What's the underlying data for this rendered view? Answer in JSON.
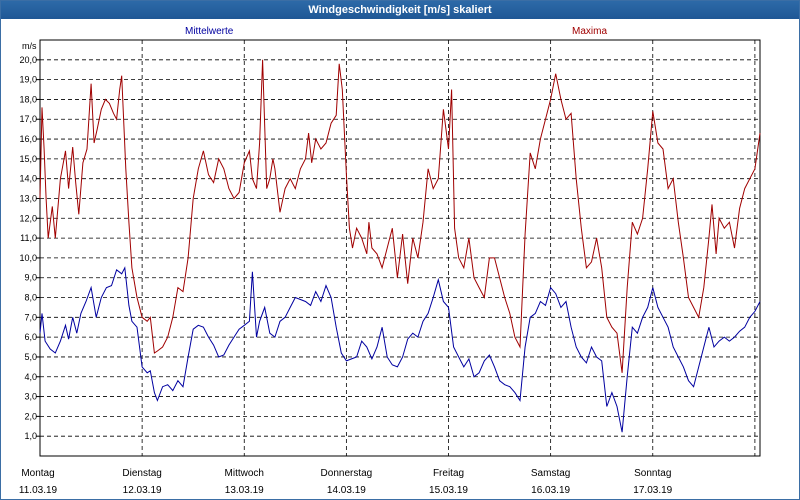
{
  "window": {
    "title": "Windgeschwindigkeit [m/s] skaliert"
  },
  "colors": {
    "mean": "#0000a0",
    "max": "#a00000",
    "grid": "#000000"
  },
  "chart_data": {
    "type": "line",
    "title": "Windgeschwindigkeit [m/s] skaliert",
    "ylabel": "m/s",
    "ylim": [
      0,
      21
    ],
    "yticks": [
      "1,0",
      "2,0",
      "3,0",
      "4,0",
      "5,0",
      "6,0",
      "7,0",
      "8,0",
      "9,0",
      "10,0",
      "11,0",
      "12,0",
      "13,0",
      "14,0",
      "15,0",
      "16,0",
      "17,0",
      "18,0",
      "19,0",
      "20,0"
    ],
    "grid": true,
    "legend": [
      "Mittelwerte",
      "Maxima"
    ],
    "xlim": [
      0,
      7.05
    ],
    "x_ticks": [
      {
        "day": "Montag",
        "date": "11.03.19"
      },
      {
        "day": "Dienstag",
        "date": "12.03.19"
      },
      {
        "day": "Mittwoch",
        "date": "13.03.19"
      },
      {
        "day": "Donnerstag",
        "date": "14.03.19"
      },
      {
        "day": "Freitag",
        "date": "15.03.19"
      },
      {
        "day": "Samstag",
        "date": "16.03.19"
      },
      {
        "day": "Sonntag",
        "date": "17.03.19"
      }
    ],
    "series": [
      {
        "name": "Mittelwerte",
        "points": [
          [
            0,
            6.2
          ],
          [
            0.02,
            7.2
          ],
          [
            0.05,
            5.8
          ],
          [
            0.1,
            5.4
          ],
          [
            0.15,
            5.2
          ],
          [
            0.2,
            5.8
          ],
          [
            0.25,
            6.6
          ],
          [
            0.28,
            5.9
          ],
          [
            0.32,
            7.0
          ],
          [
            0.36,
            6.2
          ],
          [
            0.4,
            7.2
          ],
          [
            0.45,
            7.8
          ],
          [
            0.5,
            8.5
          ],
          [
            0.55,
            7.0
          ],
          [
            0.6,
            8.0
          ],
          [
            0.65,
            8.5
          ],
          [
            0.7,
            8.6
          ],
          [
            0.75,
            9.4
          ],
          [
            0.8,
            9.2
          ],
          [
            0.83,
            9.5
          ],
          [
            0.87,
            7.6
          ],
          [
            0.9,
            6.8
          ],
          [
            0.95,
            6.5
          ],
          [
            1.0,
            4.5
          ],
          [
            1.05,
            4.2
          ],
          [
            1.08,
            4.3
          ],
          [
            1.12,
            3.2
          ],
          [
            1.15,
            2.8
          ],
          [
            1.2,
            3.5
          ],
          [
            1.25,
            3.6
          ],
          [
            1.3,
            3.3
          ],
          [
            1.35,
            3.8
          ],
          [
            1.4,
            3.5
          ],
          [
            1.45,
            5.0
          ],
          [
            1.5,
            6.4
          ],
          [
            1.55,
            6.6
          ],
          [
            1.6,
            6.5
          ],
          [
            1.65,
            6.0
          ],
          [
            1.7,
            5.6
          ],
          [
            1.75,
            5.0
          ],
          [
            1.8,
            5.1
          ],
          [
            1.85,
            5.6
          ],
          [
            1.9,
            6.0
          ],
          [
            1.95,
            6.4
          ],
          [
            2.0,
            6.6
          ],
          [
            2.05,
            6.8
          ],
          [
            2.08,
            9.3
          ],
          [
            2.12,
            6.0
          ],
          [
            2.15,
            6.8
          ],
          [
            2.2,
            7.5
          ],
          [
            2.25,
            6.2
          ],
          [
            2.3,
            6.0
          ],
          [
            2.35,
            6.8
          ],
          [
            2.4,
            7.0
          ],
          [
            2.45,
            7.5
          ],
          [
            2.5,
            8.0
          ],
          [
            2.55,
            7.9
          ],
          [
            2.6,
            7.8
          ],
          [
            2.65,
            7.6
          ],
          [
            2.7,
            8.3
          ],
          [
            2.75,
            7.8
          ],
          [
            2.8,
            8.6
          ],
          [
            2.85,
            8.0
          ],
          [
            2.9,
            6.5
          ],
          [
            2.95,
            5.2
          ],
          [
            3.0,
            4.8
          ],
          [
            3.05,
            4.9
          ],
          [
            3.1,
            5.0
          ],
          [
            3.15,
            5.8
          ],
          [
            3.2,
            5.5
          ],
          [
            3.25,
            4.9
          ],
          [
            3.3,
            5.5
          ],
          [
            3.35,
            6.5
          ],
          [
            3.4,
            5.0
          ],
          [
            3.45,
            4.6
          ],
          [
            3.5,
            4.5
          ],
          [
            3.55,
            5.0
          ],
          [
            3.6,
            5.9
          ],
          [
            3.65,
            6.2
          ],
          [
            3.7,
            6.0
          ],
          [
            3.75,
            6.8
          ],
          [
            3.8,
            7.2
          ],
          [
            3.85,
            8.0
          ],
          [
            3.9,
            8.9
          ],
          [
            3.95,
            7.8
          ],
          [
            4.0,
            7.5
          ],
          [
            4.05,
            5.5
          ],
          [
            4.1,
            5.0
          ],
          [
            4.15,
            4.5
          ],
          [
            4.2,
            4.9
          ],
          [
            4.25,
            4.0
          ],
          [
            4.3,
            4.2
          ],
          [
            4.35,
            4.8
          ],
          [
            4.4,
            5.1
          ],
          [
            4.45,
            4.5
          ],
          [
            4.5,
            3.8
          ],
          [
            4.55,
            3.6
          ],
          [
            4.6,
            3.5
          ],
          [
            4.65,
            3.2
          ],
          [
            4.7,
            2.8
          ],
          [
            4.75,
            5.5
          ],
          [
            4.8,
            7.0
          ],
          [
            4.85,
            7.2
          ],
          [
            4.9,
            7.8
          ],
          [
            4.95,
            7.6
          ],
          [
            5.0,
            8.5
          ],
          [
            5.05,
            8.2
          ],
          [
            5.1,
            7.5
          ],
          [
            5.15,
            7.8
          ],
          [
            5.2,
            6.5
          ],
          [
            5.25,
            5.5
          ],
          [
            5.3,
            5.0
          ],
          [
            5.35,
            4.7
          ],
          [
            5.4,
            5.5
          ],
          [
            5.45,
            5.0
          ],
          [
            5.5,
            4.8
          ],
          [
            5.55,
            2.5
          ],
          [
            5.6,
            3.2
          ],
          [
            5.65,
            2.5
          ],
          [
            5.7,
            1.2
          ],
          [
            5.75,
            4.0
          ],
          [
            5.8,
            6.5
          ],
          [
            5.85,
            6.2
          ],
          [
            5.9,
            7.0
          ],
          [
            5.95,
            7.5
          ],
          [
            6.0,
            8.5
          ],
          [
            6.05,
            7.5
          ],
          [
            6.1,
            7.0
          ],
          [
            6.15,
            6.5
          ],
          [
            6.2,
            5.5
          ],
          [
            6.25,
            5.0
          ],
          [
            6.3,
            4.5
          ],
          [
            6.35,
            3.8
          ],
          [
            6.4,
            3.5
          ],
          [
            6.45,
            4.5
          ],
          [
            6.5,
            5.5
          ],
          [
            6.55,
            6.5
          ],
          [
            6.6,
            5.5
          ],
          [
            6.65,
            5.8
          ],
          [
            6.7,
            6.0
          ],
          [
            6.75,
            5.8
          ],
          [
            6.8,
            6.0
          ],
          [
            6.85,
            6.3
          ],
          [
            6.9,
            6.5
          ],
          [
            6.95,
            7.0
          ],
          [
            7.0,
            7.3
          ],
          [
            7.05,
            7.8
          ]
        ]
      },
      {
        "name": "Maxima",
        "points": [
          [
            0,
            13.0
          ],
          [
            0.02,
            17.6
          ],
          [
            0.04,
            15.5
          ],
          [
            0.06,
            13.0
          ],
          [
            0.08,
            11.0
          ],
          [
            0.12,
            12.6
          ],
          [
            0.15,
            11.0
          ],
          [
            0.2,
            14.0
          ],
          [
            0.25,
            15.4
          ],
          [
            0.28,
            13.5
          ],
          [
            0.32,
            15.6
          ],
          [
            0.35,
            13.8
          ],
          [
            0.38,
            12.2
          ],
          [
            0.42,
            14.8
          ],
          [
            0.46,
            15.5
          ],
          [
            0.5,
            18.8
          ],
          [
            0.53,
            15.8
          ],
          [
            0.56,
            16.5
          ],
          [
            0.6,
            17.5
          ],
          [
            0.64,
            18.0
          ],
          [
            0.68,
            17.8
          ],
          [
            0.72,
            17.3
          ],
          [
            0.75,
            17.0
          ],
          [
            0.78,
            18.5
          ],
          [
            0.8,
            19.2
          ],
          [
            0.84,
            14.5
          ],
          [
            0.87,
            11.8
          ],
          [
            0.9,
            9.5
          ],
          [
            0.95,
            8.0
          ],
          [
            1.0,
            7.0
          ],
          [
            1.05,
            6.8
          ],
          [
            1.08,
            7.0
          ],
          [
            1.12,
            5.2
          ],
          [
            1.15,
            5.3
          ],
          [
            1.2,
            5.5
          ],
          [
            1.25,
            6.0
          ],
          [
            1.3,
            7.0
          ],
          [
            1.35,
            8.5
          ],
          [
            1.4,
            8.3
          ],
          [
            1.45,
            10.0
          ],
          [
            1.5,
            13.0
          ],
          [
            1.55,
            14.5
          ],
          [
            1.6,
            15.4
          ],
          [
            1.65,
            14.2
          ],
          [
            1.7,
            13.8
          ],
          [
            1.75,
            15.0
          ],
          [
            1.8,
            14.5
          ],
          [
            1.85,
            13.5
          ],
          [
            1.9,
            13.0
          ],
          [
            1.95,
            13.3
          ],
          [
            2.0,
            14.8
          ],
          [
            2.05,
            15.4
          ],
          [
            2.08,
            14.0
          ],
          [
            2.12,
            13.5
          ],
          [
            2.15,
            15.8
          ],
          [
            2.18,
            20.0
          ],
          [
            2.22,
            13.5
          ],
          [
            2.25,
            14.0
          ],
          [
            2.28,
            15.0
          ],
          [
            2.3,
            14.5
          ],
          [
            2.35,
            12.3
          ],
          [
            2.4,
            13.5
          ],
          [
            2.45,
            14.0
          ],
          [
            2.5,
            13.5
          ],
          [
            2.55,
            14.5
          ],
          [
            2.6,
            15.0
          ],
          [
            2.63,
            16.3
          ],
          [
            2.66,
            14.8
          ],
          [
            2.7,
            16.0
          ],
          [
            2.75,
            15.5
          ],
          [
            2.8,
            15.8
          ],
          [
            2.85,
            16.8
          ],
          [
            2.9,
            17.2
          ],
          [
            2.93,
            19.8
          ],
          [
            2.96,
            18.5
          ],
          [
            3.0,
            14.2
          ],
          [
            3.03,
            11.5
          ],
          [
            3.06,
            10.5
          ],
          [
            3.1,
            11.5
          ],
          [
            3.15,
            11.0
          ],
          [
            3.2,
            10.2
          ],
          [
            3.22,
            11.8
          ],
          [
            3.25,
            10.5
          ],
          [
            3.3,
            10.2
          ],
          [
            3.35,
            9.5
          ],
          [
            3.4,
            10.5
          ],
          [
            3.45,
            11.5
          ],
          [
            3.5,
            9.0
          ],
          [
            3.55,
            11.2
          ],
          [
            3.6,
            8.7
          ],
          [
            3.65,
            11.0
          ],
          [
            3.7,
            10.0
          ],
          [
            3.75,
            11.8
          ],
          [
            3.8,
            14.5
          ],
          [
            3.85,
            13.5
          ],
          [
            3.9,
            14.0
          ],
          [
            3.95,
            17.5
          ],
          [
            4.0,
            15.5
          ],
          [
            4.03,
            18.5
          ],
          [
            4.06,
            11.5
          ],
          [
            4.1,
            10.0
          ],
          [
            4.15,
            9.5
          ],
          [
            4.2,
            11.0
          ],
          [
            4.25,
            9.0
          ],
          [
            4.3,
            8.5
          ],
          [
            4.35,
            8.0
          ],
          [
            4.4,
            10.0
          ],
          [
            4.45,
            10.0
          ],
          [
            4.5,
            9.0
          ],
          [
            4.55,
            8.0
          ],
          [
            4.6,
            7.2
          ],
          [
            4.65,
            6.0
          ],
          [
            4.7,
            5.5
          ],
          [
            4.75,
            11.2
          ],
          [
            4.8,
            15.3
          ],
          [
            4.85,
            14.5
          ],
          [
            4.9,
            16.0
          ],
          [
            4.95,
            17.0
          ],
          [
            5.0,
            18.0
          ],
          [
            5.05,
            19.3
          ],
          [
            5.1,
            18.0
          ],
          [
            5.15,
            17.0
          ],
          [
            5.2,
            17.3
          ],
          [
            5.25,
            14.0
          ],
          [
            5.3,
            11.5
          ],
          [
            5.35,
            9.5
          ],
          [
            5.4,
            9.8
          ],
          [
            5.45,
            11.0
          ],
          [
            5.5,
            9.5
          ],
          [
            5.55,
            7.0
          ],
          [
            5.6,
            6.5
          ],
          [
            5.65,
            6.2
          ],
          [
            5.7,
            4.2
          ],
          [
            5.75,
            8.5
          ],
          [
            5.8,
            11.8
          ],
          [
            5.85,
            11.2
          ],
          [
            5.9,
            12.0
          ],
          [
            5.95,
            14.5
          ],
          [
            6.0,
            17.4
          ],
          [
            6.05,
            15.8
          ],
          [
            6.1,
            15.5
          ],
          [
            6.15,
            13.5
          ],
          [
            6.2,
            14.0
          ],
          [
            6.25,
            11.8
          ],
          [
            6.3,
            10.0
          ],
          [
            6.35,
            8.0
          ],
          [
            6.4,
            7.5
          ],
          [
            6.45,
            7.0
          ],
          [
            6.5,
            8.5
          ],
          [
            6.55,
            11.0
          ],
          [
            6.58,
            12.7
          ],
          [
            6.62,
            10.2
          ],
          [
            6.65,
            12.0
          ],
          [
            6.7,
            11.5
          ],
          [
            6.75,
            11.8
          ],
          [
            6.8,
            10.5
          ],
          [
            6.85,
            12.5
          ],
          [
            6.9,
            13.5
          ],
          [
            6.95,
            14.0
          ],
          [
            7.0,
            14.5
          ],
          [
            7.05,
            16.3
          ]
        ]
      }
    ]
  }
}
